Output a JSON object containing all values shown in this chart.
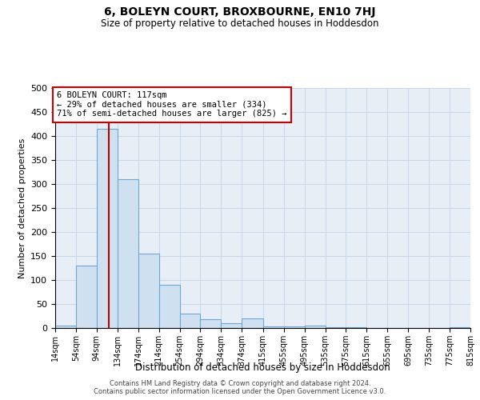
{
  "title": "6, BOLEYN COURT, BROXBOURNE, EN10 7HJ",
  "subtitle": "Size of property relative to detached houses in Hoddesdon",
  "xlabel": "Distribution of detached houses by size in Hoddesdon",
  "ylabel": "Number of detached properties",
  "bar_color": "#cfe0f0",
  "bar_edge_color": "#6aaad4",
  "grid_color": "#c8d8ea",
  "background_color": "#e8eef6",
  "annotation_box_color": "#ffffff",
  "annotation_box_edge": "#cc0000",
  "vline_color": "#bb0000",
  "footer1": "Contains HM Land Registry data © Crown copyright and database right 2024.",
  "footer2": "Contains public sector information licensed under the Open Government Licence v3.0.",
  "annotation_line1": "6 BOLEYN COURT: 117sqm",
  "annotation_line2": "← 29% of detached houses are smaller (334)",
  "annotation_line3": "71% of semi-detached houses are larger (825) →",
  "property_sqm": 117,
  "bin_edges": [
    14,
    54,
    94,
    134,
    174,
    214,
    254,
    294,
    334,
    374,
    415,
    455,
    495,
    535,
    575,
    615,
    655,
    695,
    735,
    775,
    815
  ],
  "counts": [
    5,
    130,
    415,
    310,
    155,
    90,
    30,
    18,
    10,
    20,
    4,
    4,
    5,
    1,
    1,
    0,
    0,
    0,
    0,
    1
  ],
  "ylim": [
    0,
    500
  ],
  "yticks": [
    0,
    50,
    100,
    150,
    200,
    250,
    300,
    350,
    400,
    450,
    500
  ]
}
